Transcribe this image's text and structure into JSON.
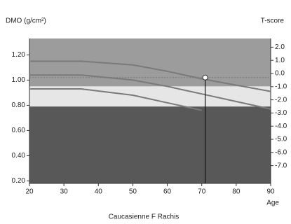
{
  "chart_data": {
    "type": "line",
    "y_label": "DMO (g/cm²)",
    "y2_label": "T-score",
    "x_label": "Age",
    "caption": "Caucasienne F Rachis",
    "x": [
      20,
      35,
      50,
      60,
      70,
      80,
      90
    ],
    "series": [
      {
        "color": "#7a7a7a",
        "values": [
          1.15,
          1.15,
          1.12,
          1.07,
          1.01,
          0.96,
          0.91
        ]
      },
      {
        "color": "#7a7a7a",
        "values": [
          1.04,
          1.04,
          1.0,
          0.95,
          0.89,
          0.83,
          0.77
        ]
      },
      {
        "color": "#7a7a7a",
        "values": [
          0.93,
          0.93,
          0.88,
          0.82,
          0.76,
          null,
          null
        ]
      }
    ],
    "bands": [
      {
        "from": 0.95,
        "to": 1.33,
        "color": "#9c9c9c"
      },
      {
        "from": 0.79,
        "to": 0.95,
        "color": "#e6e6e6"
      },
      {
        "from": 0.18,
        "to": 0.79,
        "color": "#585858"
      }
    ],
    "patient": {
      "x": 71,
      "y": 1.02
    },
    "xlim": [
      20,
      90
    ],
    "xticks": [
      20,
      30,
      40,
      50,
      60,
      70,
      80,
      90
    ],
    "ylim": [
      0.18,
      1.33
    ],
    "yticks": [
      {
        "value": 0.2,
        "label": "0.20"
      },
      {
        "value": 0.4,
        "label": "0.40"
      },
      {
        "value": 0.6,
        "label": "0.60"
      },
      {
        "value": 0.8,
        "label": "0.80"
      },
      {
        "value": 1.0,
        "label": "1.00"
      },
      {
        "value": 1.2,
        "label": "1.20"
      }
    ],
    "y2lim": [
      -8.35,
      2.66
    ],
    "y2ticks": [
      {
        "value": 2,
        "label": "2.0"
      },
      {
        "value": 1,
        "label": "1.0"
      },
      {
        "value": 0,
        "label": "0.0"
      },
      {
        "value": -1,
        "label": "-1.0"
      },
      {
        "value": -2,
        "label": "-2.0"
      },
      {
        "value": -3,
        "label": "-3.0"
      },
      {
        "value": -4,
        "label": "-4.0"
      },
      {
        "value": -5,
        "label": "-5.0"
      },
      {
        "value": -6,
        "label": "-6.0"
      },
      {
        "value": -7,
        "label": "-7.0"
      }
    ]
  }
}
